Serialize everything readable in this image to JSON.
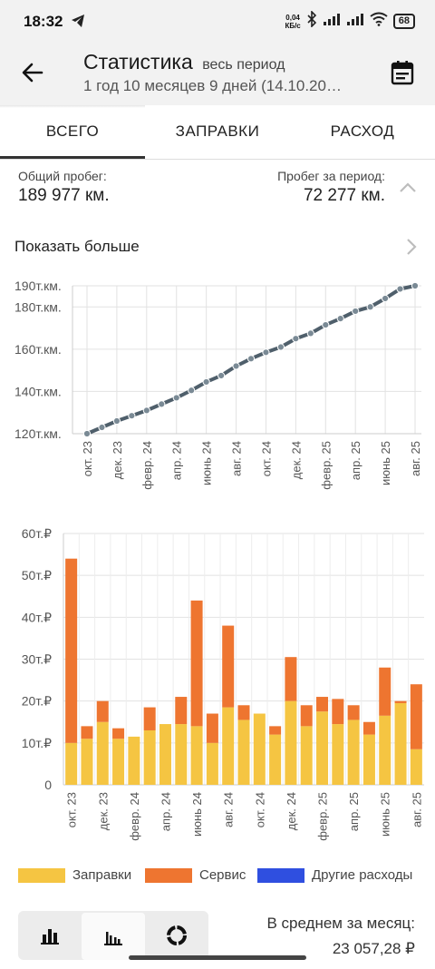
{
  "status": {
    "time": "18:32",
    "net_value": "0,04",
    "net_unit": "КБ/с",
    "battery": "68"
  },
  "appbar": {
    "title": "Статистика",
    "subtitle": "весь период",
    "period": "1 год 10 месяцев 9 дней (14.10.20…"
  },
  "tabs": [
    {
      "label": "ВСЕГО",
      "active": true
    },
    {
      "label": "ЗАПРАВКИ",
      "active": false
    },
    {
      "label": "РАСХОД",
      "active": false
    }
  ],
  "stats": {
    "total_label": "Общий пробег:",
    "total_value": "189 977 км.",
    "period_label": "Пробег за период:",
    "period_value": "72 277 км."
  },
  "more": {
    "label": "Показать больше"
  },
  "colors": {
    "fuel": "#f5c542",
    "service": "#ee7530",
    "other": "#2f4fe0",
    "line": "#4f5f6b"
  },
  "chart_data": [
    {
      "type": "line",
      "ytick_labels": [
        "120т.км.",
        "140т.км.",
        "160т.км.",
        "180т.км.",
        "190т.км."
      ],
      "yticks": [
        120,
        140,
        160,
        180,
        190
      ],
      "ylim": [
        120,
        190
      ],
      "xtick_labels": [
        "окт. 23",
        "дек. 23",
        "февр. 24",
        "апр. 24",
        "июнь 24",
        "авг. 24",
        "окт. 24",
        "дек. 24",
        "февр. 25",
        "апр. 25",
        "июнь 25",
        "авг. 25"
      ],
      "x_months": [
        "окт. 23",
        "нояб. 23",
        "дек. 23",
        "янв. 24",
        "февр. 24",
        "март 24",
        "апр. 24",
        "май 24",
        "июнь 24",
        "июль 24",
        "авг. 24",
        "сент. 24",
        "окт. 24",
        "нояб. 24",
        "дек. 24",
        "янв. 25",
        "февр. 25",
        "март 25",
        "апр. 25",
        "май 25",
        "июнь 25",
        "июль 25",
        "авг. 25"
      ],
      "values": [
        120.0,
        123.0,
        126.0,
        128.5,
        131.0,
        134.0,
        137.0,
        140.5,
        144.5,
        147.5,
        152.0,
        155.5,
        158.5,
        161.0,
        165.0,
        167.5,
        171.5,
        174.5,
        178.0,
        180.0,
        184.0,
        188.5,
        190.0
      ],
      "grid": true
    },
    {
      "type": "bar",
      "stacked": true,
      "ytick_labels": [
        "0",
        "10т.₽",
        "20т.₽",
        "30т.₽",
        "40т.₽",
        "50т.₽",
        "60т.₽"
      ],
      "yticks": [
        0,
        10,
        20,
        30,
        40,
        50,
        60
      ],
      "ylim": [
        0,
        60
      ],
      "xtick_labels": [
        "окт. 23",
        "дек. 23",
        "февр. 24",
        "апр. 24",
        "июнь 24",
        "авг. 24",
        "окт. 24",
        "дек. 24",
        "февр. 25",
        "апр. 25",
        "июнь 25",
        "авг. 25"
      ],
      "series": [
        {
          "name": "Заправки",
          "values": [
            10,
            11,
            15,
            11,
            11.5,
            13,
            14.5,
            14.5,
            14,
            10,
            18.5,
            15.5,
            17,
            12,
            20,
            14,
            17.5,
            14.5,
            15.5,
            12,
            16.5,
            19.5,
            8.5
          ]
        },
        {
          "name": "Сервис",
          "values": [
            44,
            3,
            5,
            2.5,
            0,
            5.5,
            0,
            6.5,
            30,
            7,
            19.5,
            3.5,
            0,
            2,
            10.5,
            5,
            3.5,
            6,
            3.5,
            3,
            11.5,
            0.5,
            15.5
          ]
        },
        {
          "name": "Другие расходы",
          "values": [
            0,
            0,
            0,
            0,
            0,
            0,
            0,
            0,
            0,
            0,
            0,
            0,
            0,
            0,
            0,
            0,
            0,
            0,
            0,
            0,
            0,
            0,
            0
          ]
        }
      ],
      "legend": "bottom",
      "grid": true
    }
  ],
  "legend": {
    "fuel": "Заправки",
    "service": "Сервис",
    "other": "Другие расходы"
  },
  "footer": {
    "avg_label": "В среднем за месяц:",
    "avg_value": "23 057,28 ₽"
  }
}
